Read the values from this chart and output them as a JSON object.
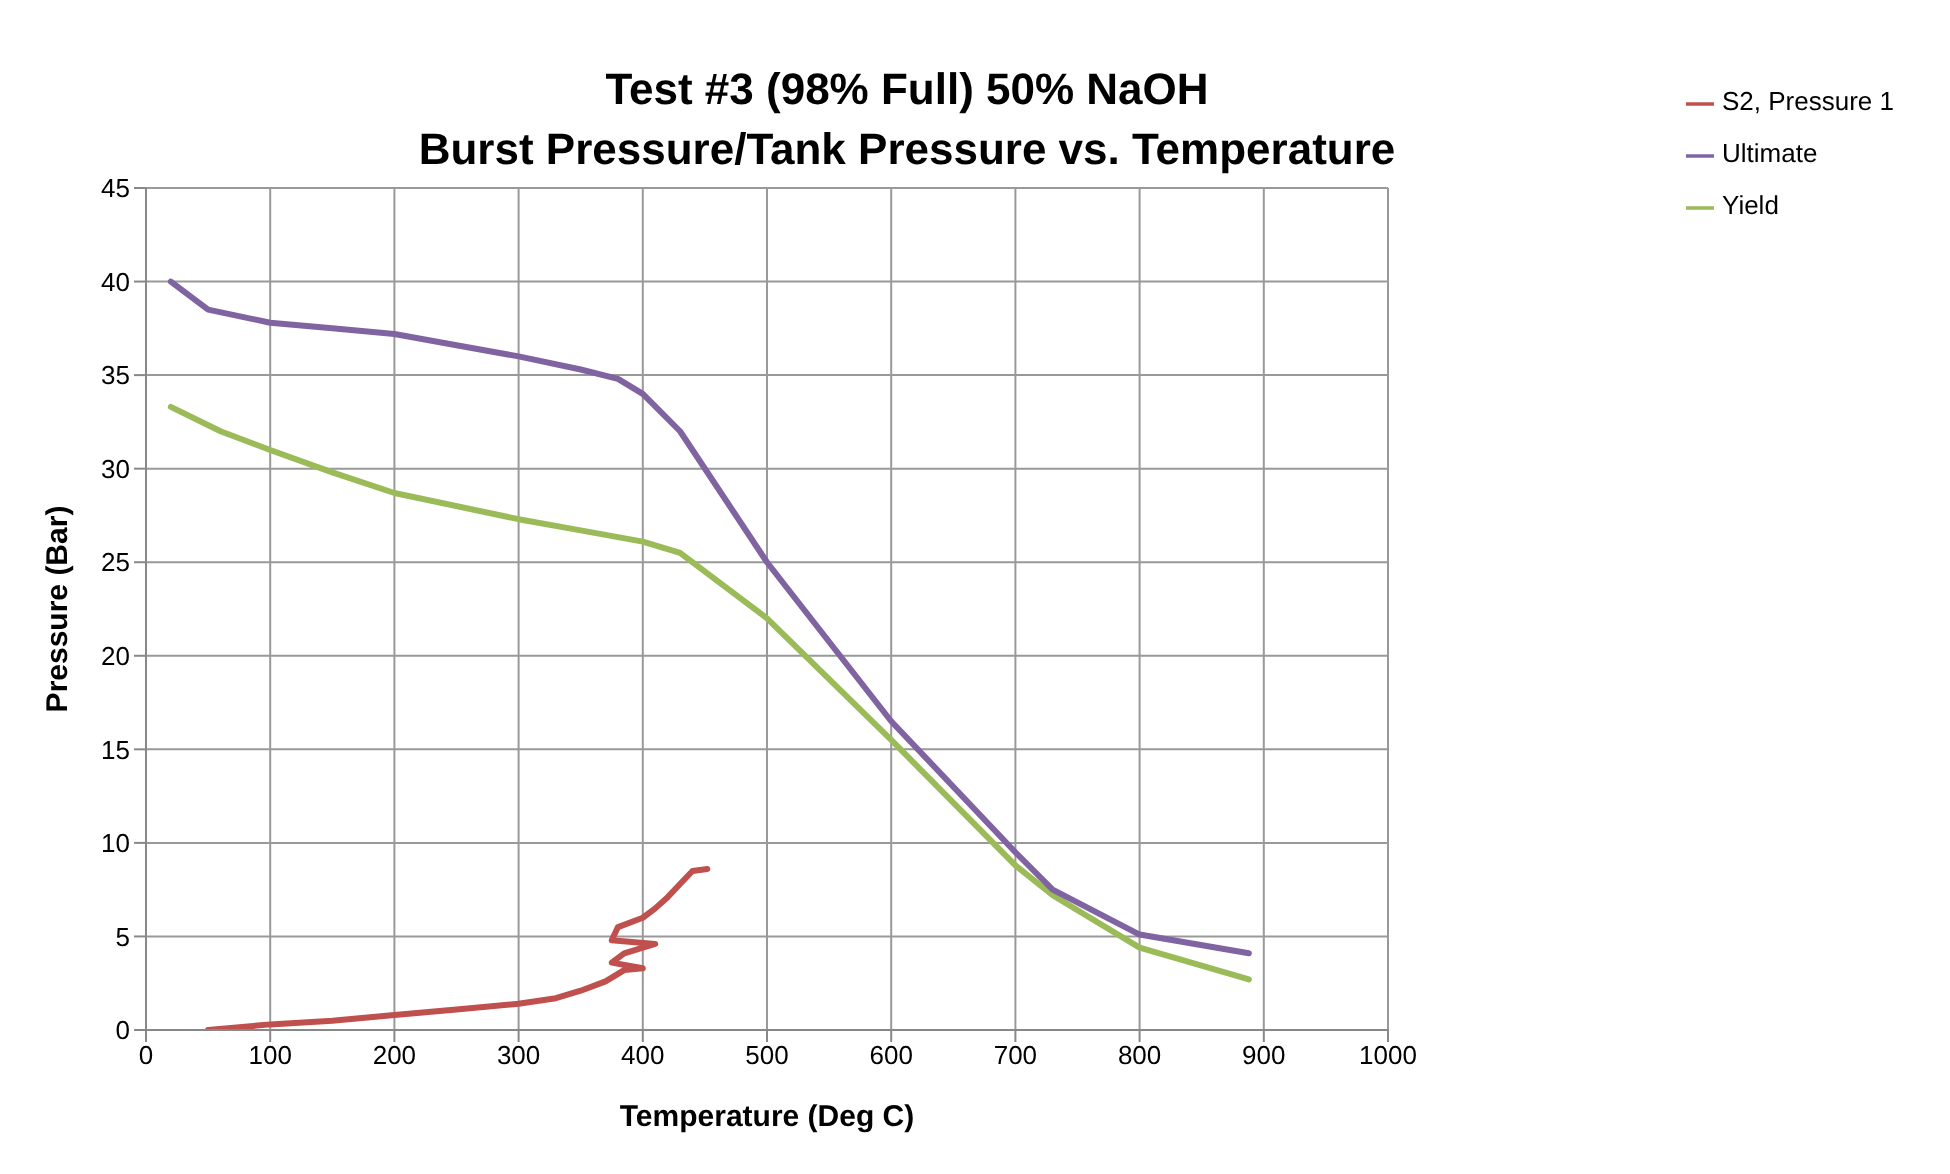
{
  "chart_data": {
    "type": "line",
    "title": "Test #3 (98% Full) 50% NaOH",
    "subtitle": "Burst Pressure/Tank Pressure vs. Temperature",
    "xlabel": "Temperature (Deg  C)",
    "ylabel": "Pressure (Bar)",
    "xlim": [
      0,
      1000
    ],
    "xticks": [
      0,
      100,
      200,
      300,
      400,
      500,
      600,
      700,
      800,
      900,
      1000
    ],
    "ylim": [
      0,
      45
    ],
    "yticks": [
      0,
      5,
      10,
      15,
      20,
      25,
      30,
      35,
      40,
      45
    ],
    "grid": true,
    "legend": "top right",
    "marker": "none",
    "line_style": "solid",
    "series": [
      {
        "name": "S2, Pressure 1",
        "color": "#c0504d",
        "x": [
          50,
          100,
          150,
          200,
          250,
          300,
          330,
          350,
          370,
          385,
          400,
          375,
          385,
          410,
          375,
          380,
          400,
          410,
          420,
          430,
          440,
          452
        ],
        "values": [
          0,
          0.3,
          0.5,
          0.8,
          1.1,
          1.4,
          1.7,
          2.1,
          2.6,
          3.2,
          3.3,
          3.6,
          4.1,
          4.6,
          4.8,
          5.5,
          6,
          6.5,
          7.1,
          7.8,
          8.5,
          8.6
        ]
      },
      {
        "name": "Yield",
        "color": "#9bbb59",
        "x": [
          20,
          60,
          100,
          150,
          200,
          300,
          350,
          400,
          430,
          500,
          600,
          700,
          730,
          800,
          888
        ],
        "values": [
          33.3,
          32,
          31,
          29.8,
          28.7,
          27.3,
          26.7,
          26.1,
          25.5,
          22,
          15.5,
          8.8,
          7.2,
          4.4,
          2.7
        ]
      },
      {
        "name": "Ultimate",
        "color": "#8064a2",
        "x": [
          20,
          50,
          100,
          150,
          200,
          250,
          300,
          350,
          380,
          400,
          430,
          500,
          600,
          700,
          730,
          800,
          888
        ],
        "values": [
          40,
          38.5,
          37.8,
          37.5,
          37.2,
          36.6,
          36,
          35.3,
          34.8,
          34,
          32,
          25,
          16.5,
          9.5,
          7.5,
          5.1,
          4.1
        ]
      }
    ]
  }
}
